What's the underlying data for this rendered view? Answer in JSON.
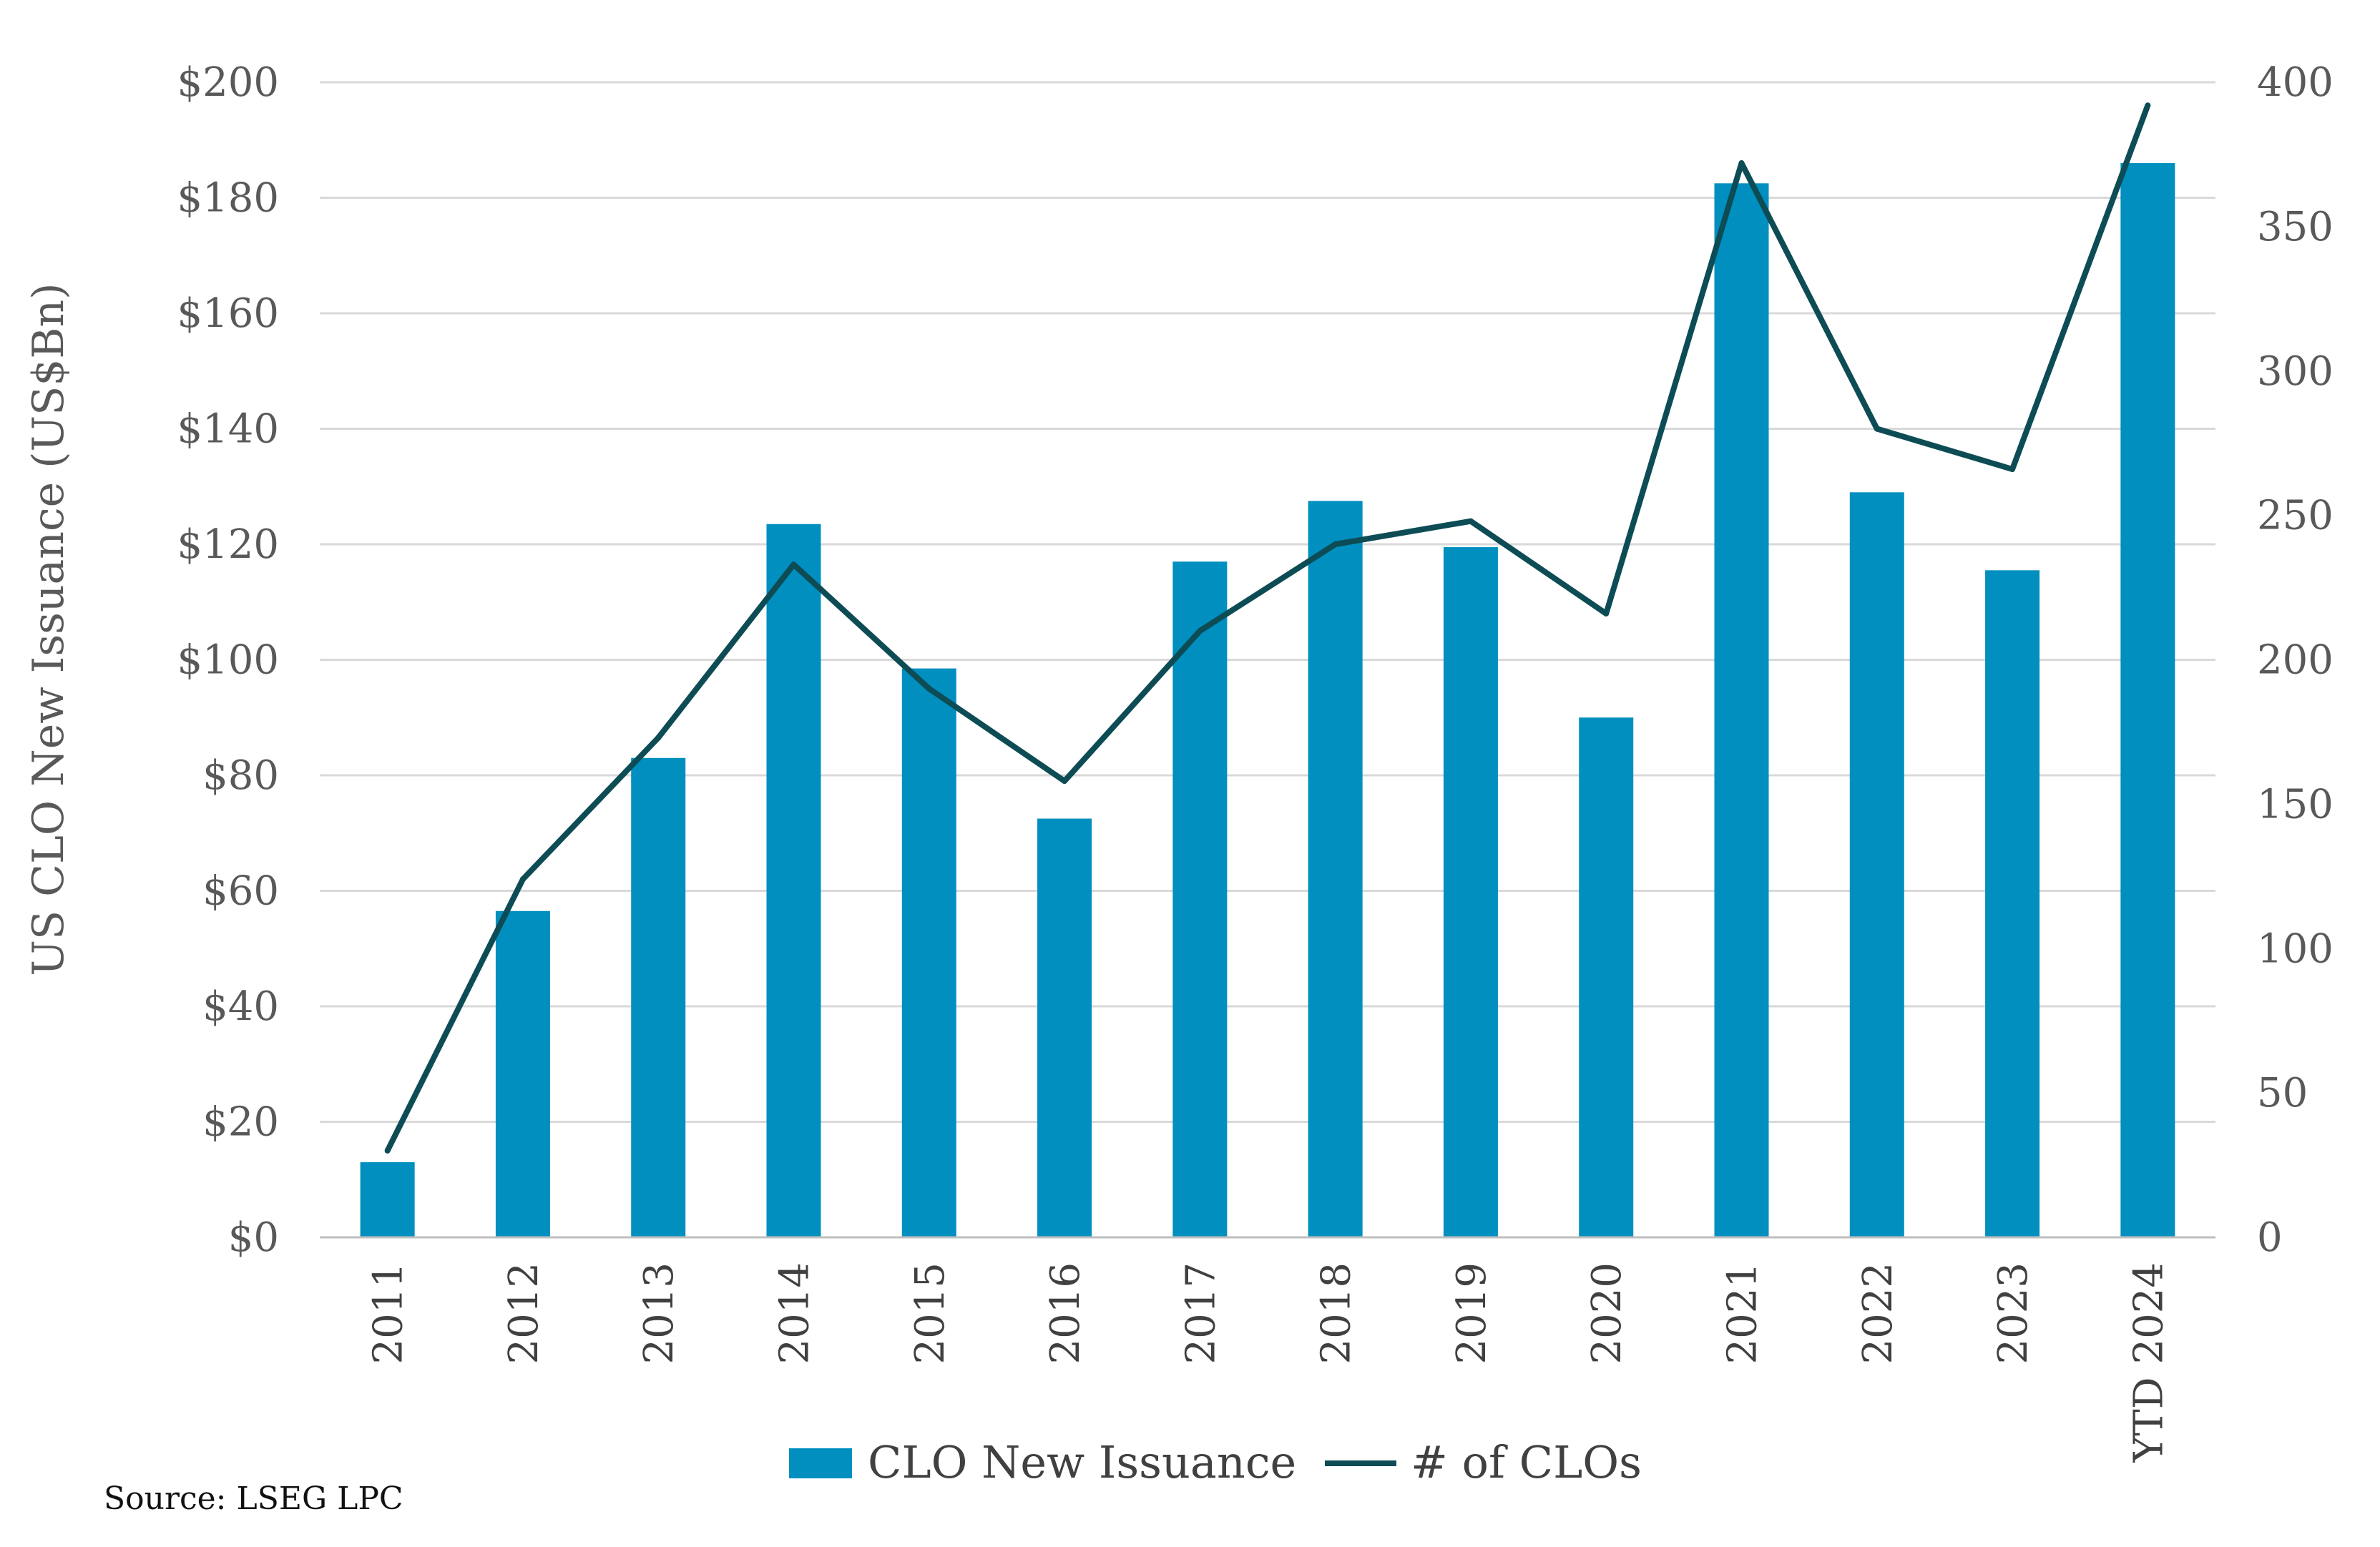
{
  "chart_data": {
    "type": "bar+line",
    "title": "",
    "categories": [
      "2011",
      "2012",
      "2013",
      "2014",
      "2015",
      "2016",
      "2017",
      "2018",
      "2019",
      "2020",
      "2021",
      "2022",
      "2023",
      "YTD 2024"
    ],
    "series": [
      {
        "name": "CLO New Issuance",
        "type": "bar",
        "axis": "left",
        "color": "#008fbe",
        "values": [
          13,
          56.5,
          83,
          123.5,
          98.5,
          72.5,
          117,
          127.5,
          119.5,
          90,
          182.5,
          129,
          115.5,
          186
        ]
      },
      {
        "name": "# of CLOs",
        "type": "line",
        "axis": "right",
        "color": "#0d4c55",
        "values": [
          30,
          124,
          173,
          233,
          190,
          158,
          210,
          240,
          248,
          216,
          372,
          280,
          266,
          392
        ]
      }
    ],
    "ylabel": "US CLO New Issuance (US$Bn)",
    "ylim": [
      0,
      200
    ],
    "y_ticks": [
      "$0",
      "$20",
      "$40",
      "$60",
      "$80",
      "$100",
      "$120",
      "$140",
      "$160",
      "$180",
      "$200"
    ],
    "y2lim": [
      0,
      400
    ],
    "y2_ticks": [
      "0",
      "50",
      "100",
      "150",
      "200",
      "250",
      "300",
      "350",
      "400"
    ],
    "grid": true,
    "legend_position": "bottom"
  },
  "legend": {
    "bar_label": "CLO New Issuance",
    "line_label": "# of CLOs"
  },
  "source": "Source: LSEG LPC"
}
